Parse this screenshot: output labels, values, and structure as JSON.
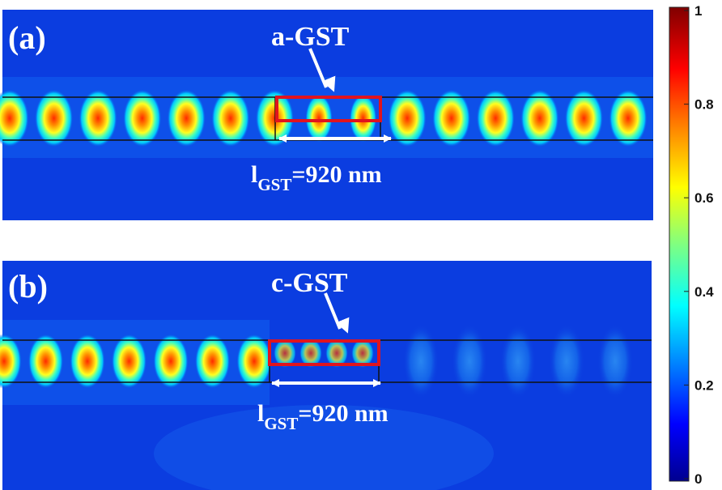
{
  "panels": [
    {
      "label": "(a)",
      "material_label": "a-GST",
      "length_label": {
        "main": "l",
        "subscript": "GST",
        "value": "=920 nm"
      },
      "field_lobes": 15,
      "lobes_inside_gst": 3,
      "transmission": "high"
    },
    {
      "label": "(b)",
      "material_label": "c-GST",
      "length_label": {
        "main": "l",
        "subscript": "GST",
        "value": "=920 nm"
      },
      "field_lobes": 7,
      "transmission": "low"
    }
  ],
  "colorbar": {
    "min": 0,
    "max": 1,
    "ticks": [
      "1",
      "0.8",
      "0.6",
      "0.4",
      "0.2",
      "0"
    ],
    "colormap": "jet",
    "colors": [
      "#00008f",
      "#0000ff",
      "#0080ff",
      "#00ffff",
      "#80ff80",
      "#ffff00",
      "#ff8000",
      "#ff0000",
      "#800000"
    ]
  },
  "colors": {
    "background": "#0b3de0",
    "gst_box": "#e0141e",
    "waveguide_edge": "#111111",
    "annotation": "#ffffff"
  }
}
